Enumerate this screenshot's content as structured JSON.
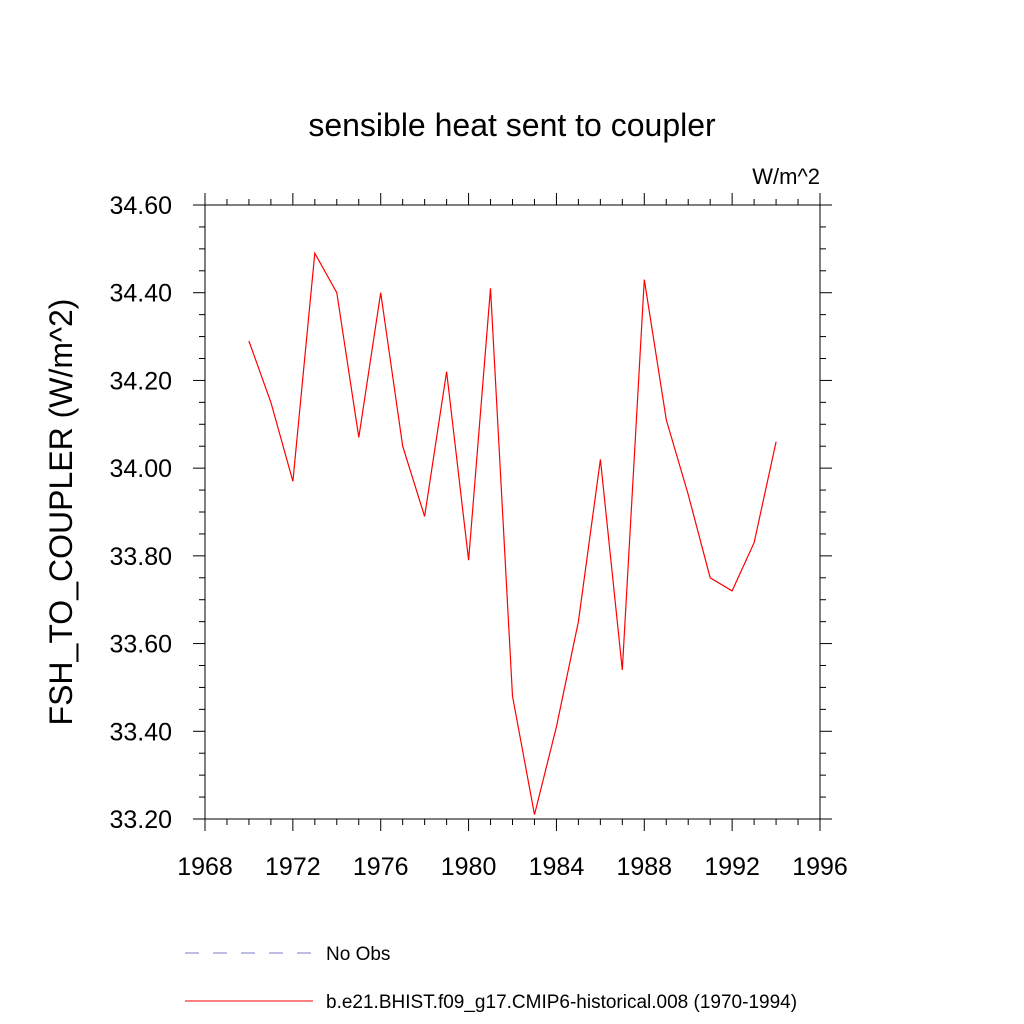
{
  "chart_data": {
    "type": "line",
    "title": "sensible heat sent to coupler",
    "units": "W/m^2",
    "xlabel": "",
    "ylabel": "FSH_TO_COUPLER  (W/m^2)",
    "xlim": [
      1968,
      1996
    ],
    "ylim": [
      33.2,
      34.6
    ],
    "xticks": [
      1968,
      1972,
      1976,
      1980,
      1984,
      1988,
      1992,
      1996
    ],
    "xtick_labels": [
      "1968",
      "1972",
      "1976",
      "1980",
      "1984",
      "1988",
      "1992",
      "1996"
    ],
    "yticks": [
      33.2,
      33.4,
      33.6,
      33.8,
      34.0,
      34.2,
      34.4,
      34.6
    ],
    "ytick_labels": [
      "33.20",
      "33.40",
      "33.60",
      "33.80",
      "34.00",
      "34.20",
      "34.40",
      "34.60"
    ],
    "grid": false,
    "legend_position": "bottom",
    "series": [
      {
        "name": "b.e21.BHIST.f09_g17.CMIP6-historical.008 (1970-1994)",
        "color": "#ff0000",
        "dash": "solid",
        "x": [
          1970,
          1971,
          1972,
          1973,
          1974,
          1975,
          1976,
          1977,
          1978,
          1979,
          1980,
          1981,
          1982,
          1983,
          1984,
          1985,
          1986,
          1987,
          1988,
          1989,
          1990,
          1991,
          1992,
          1993,
          1994
        ],
        "y": [
          34.29,
          34.15,
          33.97,
          34.49,
          34.4,
          34.07,
          34.4,
          34.05,
          33.89,
          34.22,
          33.79,
          34.41,
          33.48,
          33.21,
          33.41,
          33.65,
          34.02,
          33.54,
          34.43,
          34.11,
          33.94,
          33.75,
          33.72,
          33.83,
          34.06
        ]
      }
    ],
    "legend": [
      {
        "label": "No Obs",
        "color": "#7b7bc9",
        "dash": "dashed"
      },
      {
        "label": "b.e21.BHIST.f09_g17.CMIP6-historical.008 (1970-1994)",
        "color": "#ff0000",
        "dash": "solid"
      }
    ]
  }
}
